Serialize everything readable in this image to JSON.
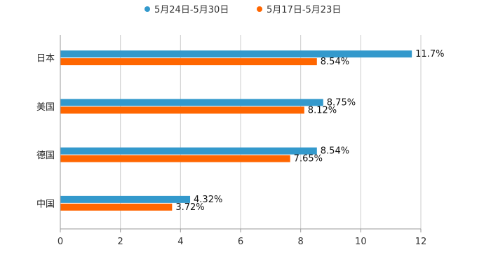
{
  "chart_data": {
    "type": "bar",
    "orientation": "horizontal",
    "categories": [
      "日本",
      "美国",
      "德国",
      "中国"
    ],
    "series": [
      {
        "name": "5月24日-5月30日",
        "color": "#3399cc",
        "values": [
          11.7,
          8.75,
          8.54,
          4.32
        ],
        "labels": [
          "11.7%",
          "8.75%",
          "8.54%",
          "4.32%"
        ]
      },
      {
        "name": "5月17日-5月23日",
        "color": "#ff6600",
        "values": [
          8.54,
          8.12,
          7.65,
          3.72
        ],
        "labels": [
          "8.54%",
          "8.12%",
          "7.65%",
          "3.72%"
        ]
      }
    ],
    "xlim": [
      0,
      12
    ],
    "xticks": [
      0,
      2,
      4,
      6,
      8,
      10,
      12
    ],
    "grid": true,
    "legend": "top-center",
    "title": "",
    "xlabel": "",
    "ylabel": ""
  }
}
